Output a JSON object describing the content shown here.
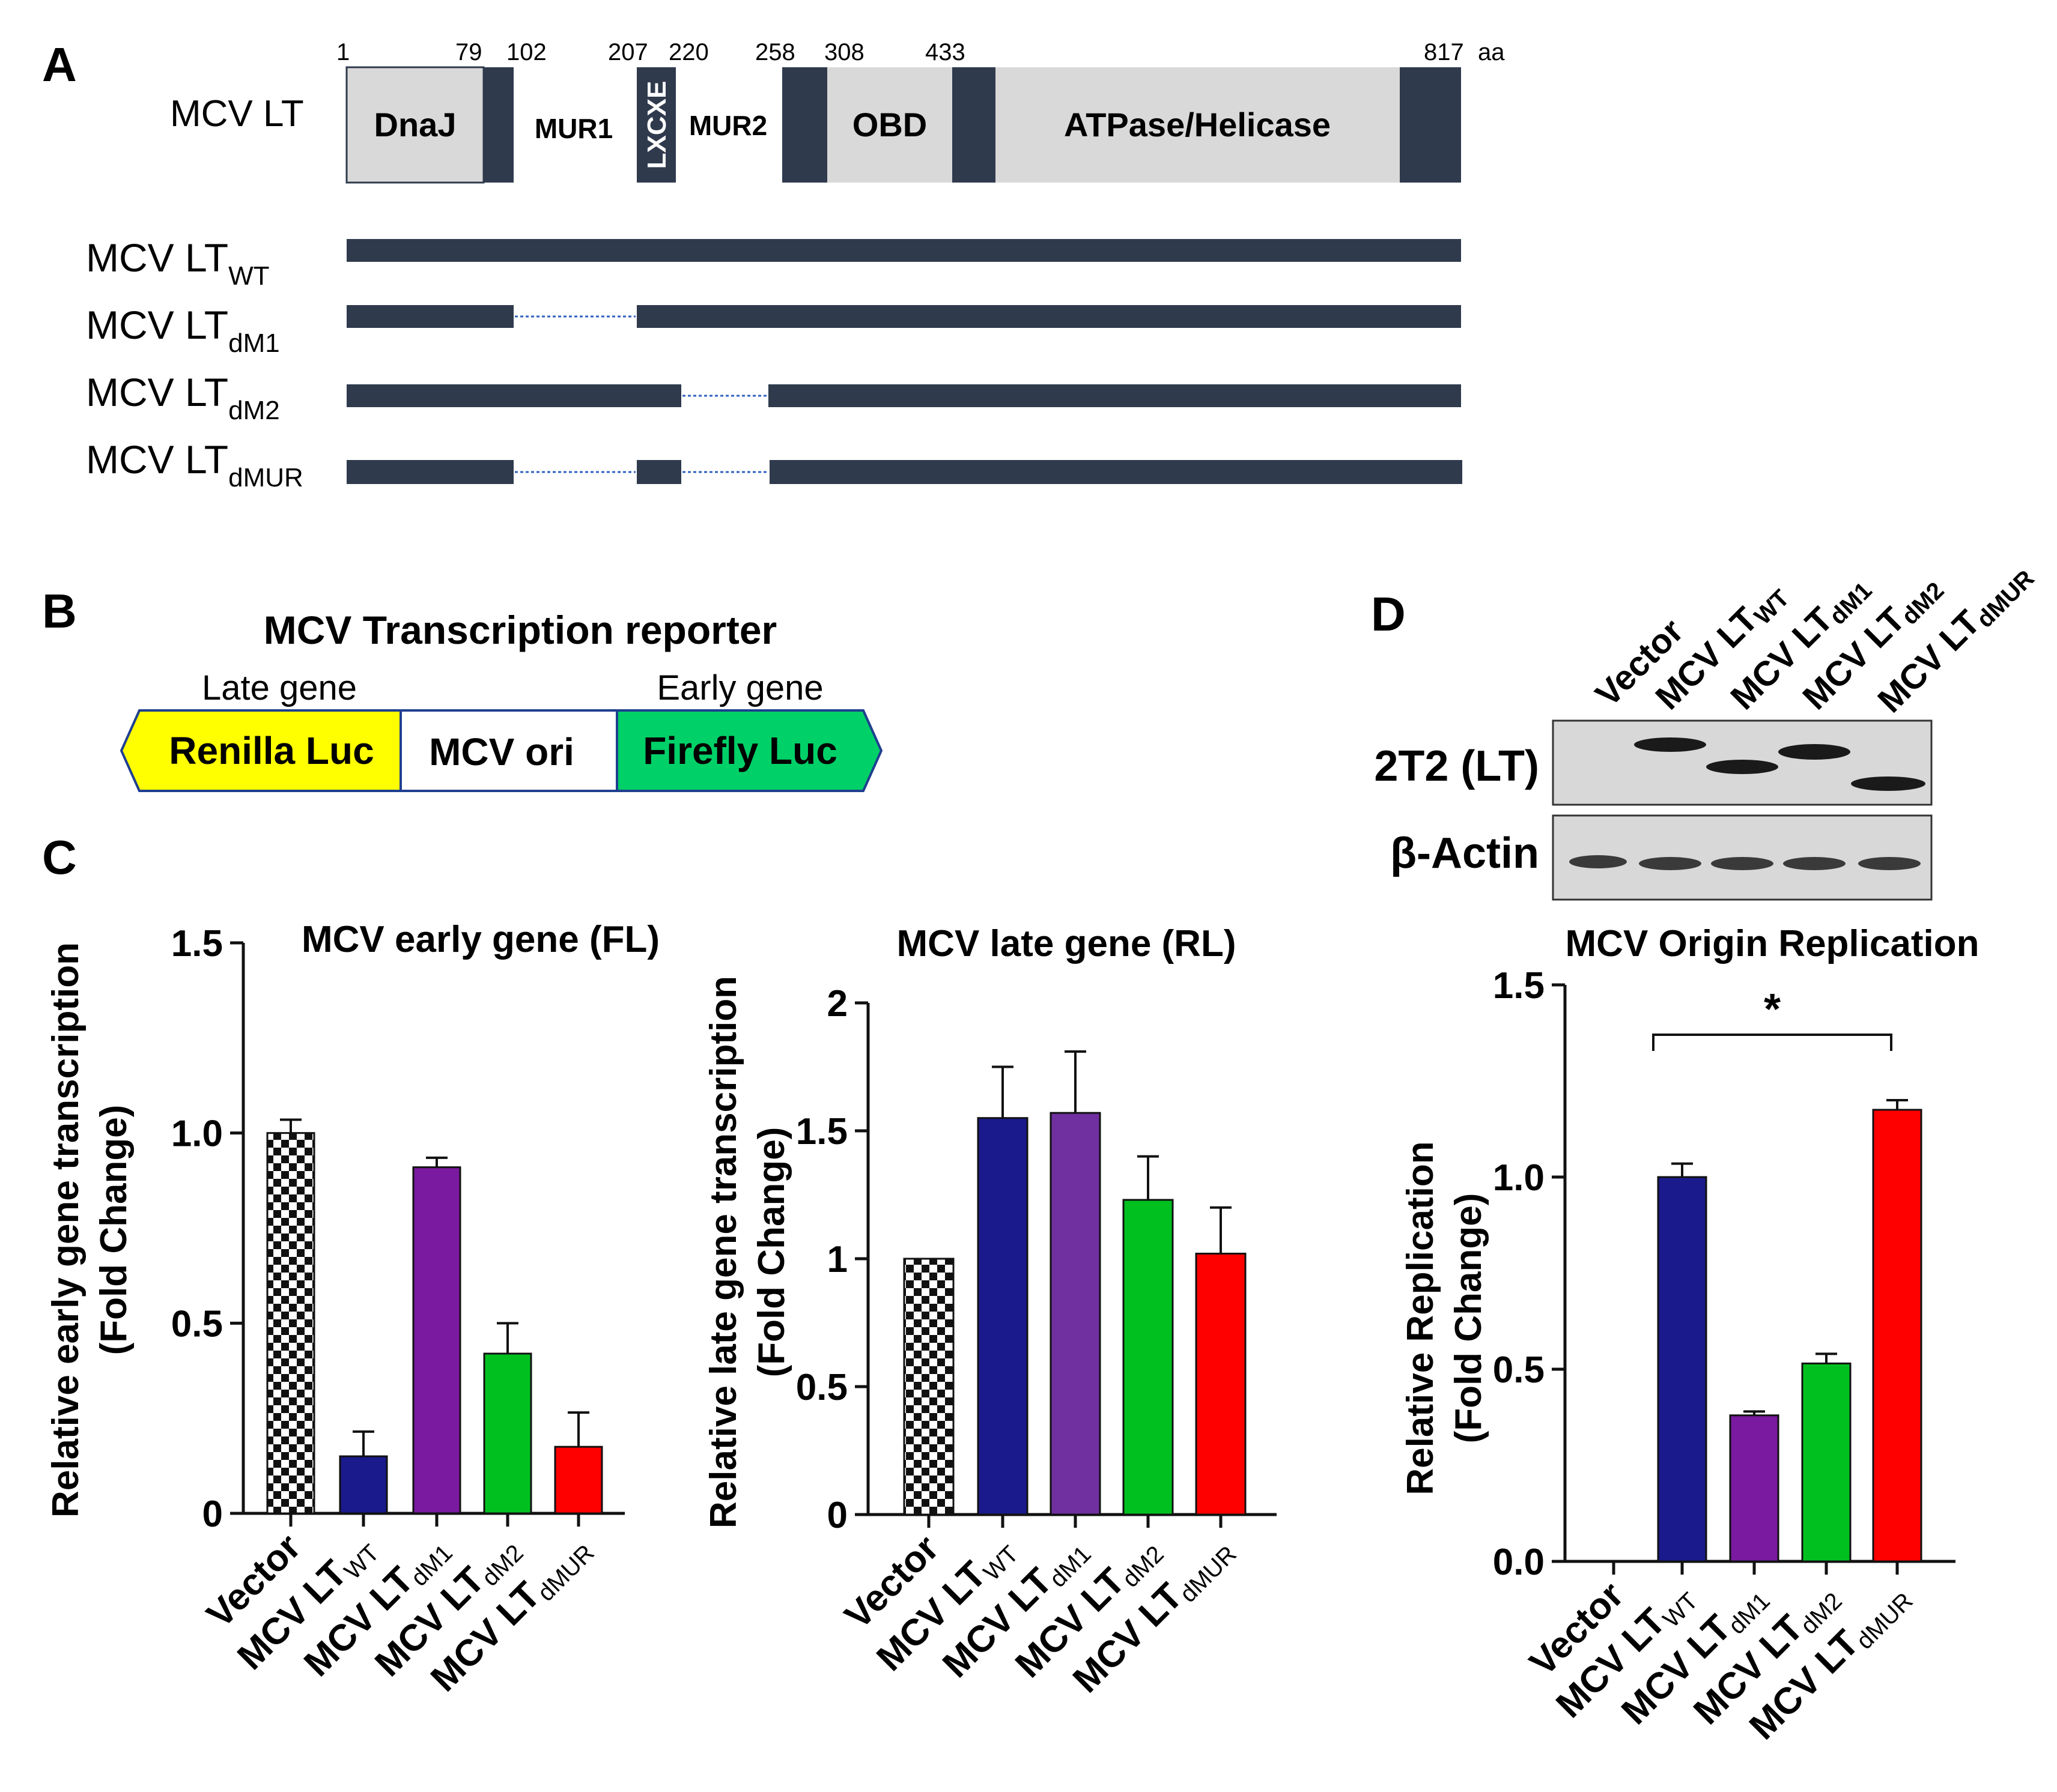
{
  "colors": {
    "navy": "#2f3a4d",
    "domain_grey": "#d9d9d9",
    "white": "#ffffff",
    "renilla": "#ffff00",
    "firefly": "#00d068",
    "reporter_border": "#1f3f8f",
    "blot_bg": "#d8d8d8",
    "band": "#1a1a1a",
    "bars": {
      "vector": "checker",
      "wt": "#1a1a8c",
      "dM1": "#7a1aa0",
      "dM1_late": "#7030a0",
      "dM2": "#00c020",
      "dMUR": "#ff0000"
    }
  },
  "panelA": {
    "label": "A",
    "protein_label": "MCV LT",
    "positions": [
      "1",
      "79",
      "102",
      "207",
      "220",
      "258",
      "308",
      "433",
      "817"
    ],
    "aa_unit": "aa",
    "domains": {
      "dnaj": "DnaJ",
      "mur1": "MUR1",
      "lxcxe": "LXCXE",
      "mur2": "MUR2",
      "obd": "OBD",
      "helicase": "ATPase/Helicase"
    },
    "constructs": [
      {
        "base": "MCV LT",
        "sub": "WT"
      },
      {
        "base": "MCV LT",
        "sub": "dM1"
      },
      {
        "base": "MCV LT",
        "sub": "dM2"
      },
      {
        "base": "MCV LT",
        "sub": "dMUR"
      }
    ]
  },
  "panelB": {
    "label": "B",
    "title": "MCV Transcription reporter",
    "late_gene": "Late gene",
    "early_gene": "Early gene",
    "renilla": "Renilla Luc",
    "ori": "MCV ori",
    "firefly": "Firefly Luc"
  },
  "panelC": {
    "label": "C"
  },
  "panelD": {
    "label": "D",
    "blot_lanes": [
      {
        "base": "Vector",
        "sub": ""
      },
      {
        "base": "MCV LT",
        "sub": "WT"
      },
      {
        "base": "MCV LT",
        "sub": "dM1"
      },
      {
        "base": "MCV LT",
        "sub": "dM2"
      },
      {
        "base": "MCV LT",
        "sub": "dMUR"
      }
    ],
    "blot_rows": [
      "2T2 (LT)",
      "β-Actin"
    ],
    "significance": "*"
  },
  "chart_data": [
    {
      "id": "early",
      "type": "bar",
      "title": "MCV early gene (FL)",
      "ylabel_lines": [
        "Relative early gene transcription",
        "(Fold Change)"
      ],
      "ylim": [
        0,
        1.5
      ],
      "yticks": [
        "0",
        "0.5",
        "1.0",
        "1.5"
      ],
      "ytick_values": [
        0,
        0.5,
        1.0,
        1.5
      ],
      "categories": [
        {
          "base": "Vector",
          "sub": ""
        },
        {
          "base": "MCV LT",
          "sub": "WT"
        },
        {
          "base": "MCV LT",
          "sub": "dM1"
        },
        {
          "base": "MCV LT",
          "sub": "dM2"
        },
        {
          "base": "MCV LT",
          "sub": "dMUR"
        }
      ],
      "values": [
        1.0,
        0.15,
        0.91,
        0.42,
        0.175
      ],
      "errors": [
        0.035,
        0.065,
        0.025,
        0.08,
        0.09
      ],
      "bar_colors": [
        "checker",
        "#1a1a8c",
        "#7a1aa0",
        "#00c020",
        "#ff0000"
      ]
    },
    {
      "id": "late",
      "type": "bar",
      "title": "MCV late gene (RL)",
      "ylabel_lines": [
        "Relative late gene transcription",
        "(Fold Change)"
      ],
      "ylim": [
        0,
        2
      ],
      "yticks": [
        "0",
        "0.5",
        "1",
        "1.5",
        "2"
      ],
      "ytick_values": [
        0,
        0.5,
        1,
        1.5,
        2
      ],
      "categories": [
        {
          "base": "Vector",
          "sub": ""
        },
        {
          "base": "MCV LT",
          "sub": "WT"
        },
        {
          "base": "MCV LT",
          "sub": "dM1"
        },
        {
          "base": "MCV LT",
          "sub": "dM2"
        },
        {
          "base": "MCV LT",
          "sub": "dMUR"
        }
      ],
      "values": [
        1.0,
        1.55,
        1.57,
        1.23,
        1.02
      ],
      "errors": [
        0.0,
        0.2,
        0.24,
        0.17,
        0.18
      ],
      "bar_colors": [
        "checker",
        "#1a1a8c",
        "#7030a0",
        "#00c020",
        "#ff0000"
      ]
    },
    {
      "id": "replication",
      "type": "bar",
      "title": "MCV Origin Replication",
      "ylabel_lines": [
        "Relative Replication",
        "(Fold Change)"
      ],
      "ylim": [
        0,
        1.5
      ],
      "yticks": [
        "0.0",
        "0.5",
        "1.0",
        "1.5"
      ],
      "ytick_values": [
        0,
        0.5,
        1.0,
        1.5
      ],
      "categories": [
        {
          "base": "Vector",
          "sub": ""
        },
        {
          "base": "MCV LT",
          "sub": "WT"
        },
        {
          "base": "MCV LT",
          "sub": "dM1"
        },
        {
          "base": "MCV LT",
          "sub": "dM2"
        },
        {
          "base": "MCV LT",
          "sub": "dMUR"
        }
      ],
      "values": [
        0.0,
        1.0,
        0.38,
        0.515,
        1.175
      ],
      "errors": [
        0.0,
        0.035,
        0.01,
        0.025,
        0.025
      ],
      "bar_colors": [
        "none",
        "#1a1a8c",
        "#7a1aa0",
        "#00c020",
        "#ff0000"
      ]
    }
  ]
}
